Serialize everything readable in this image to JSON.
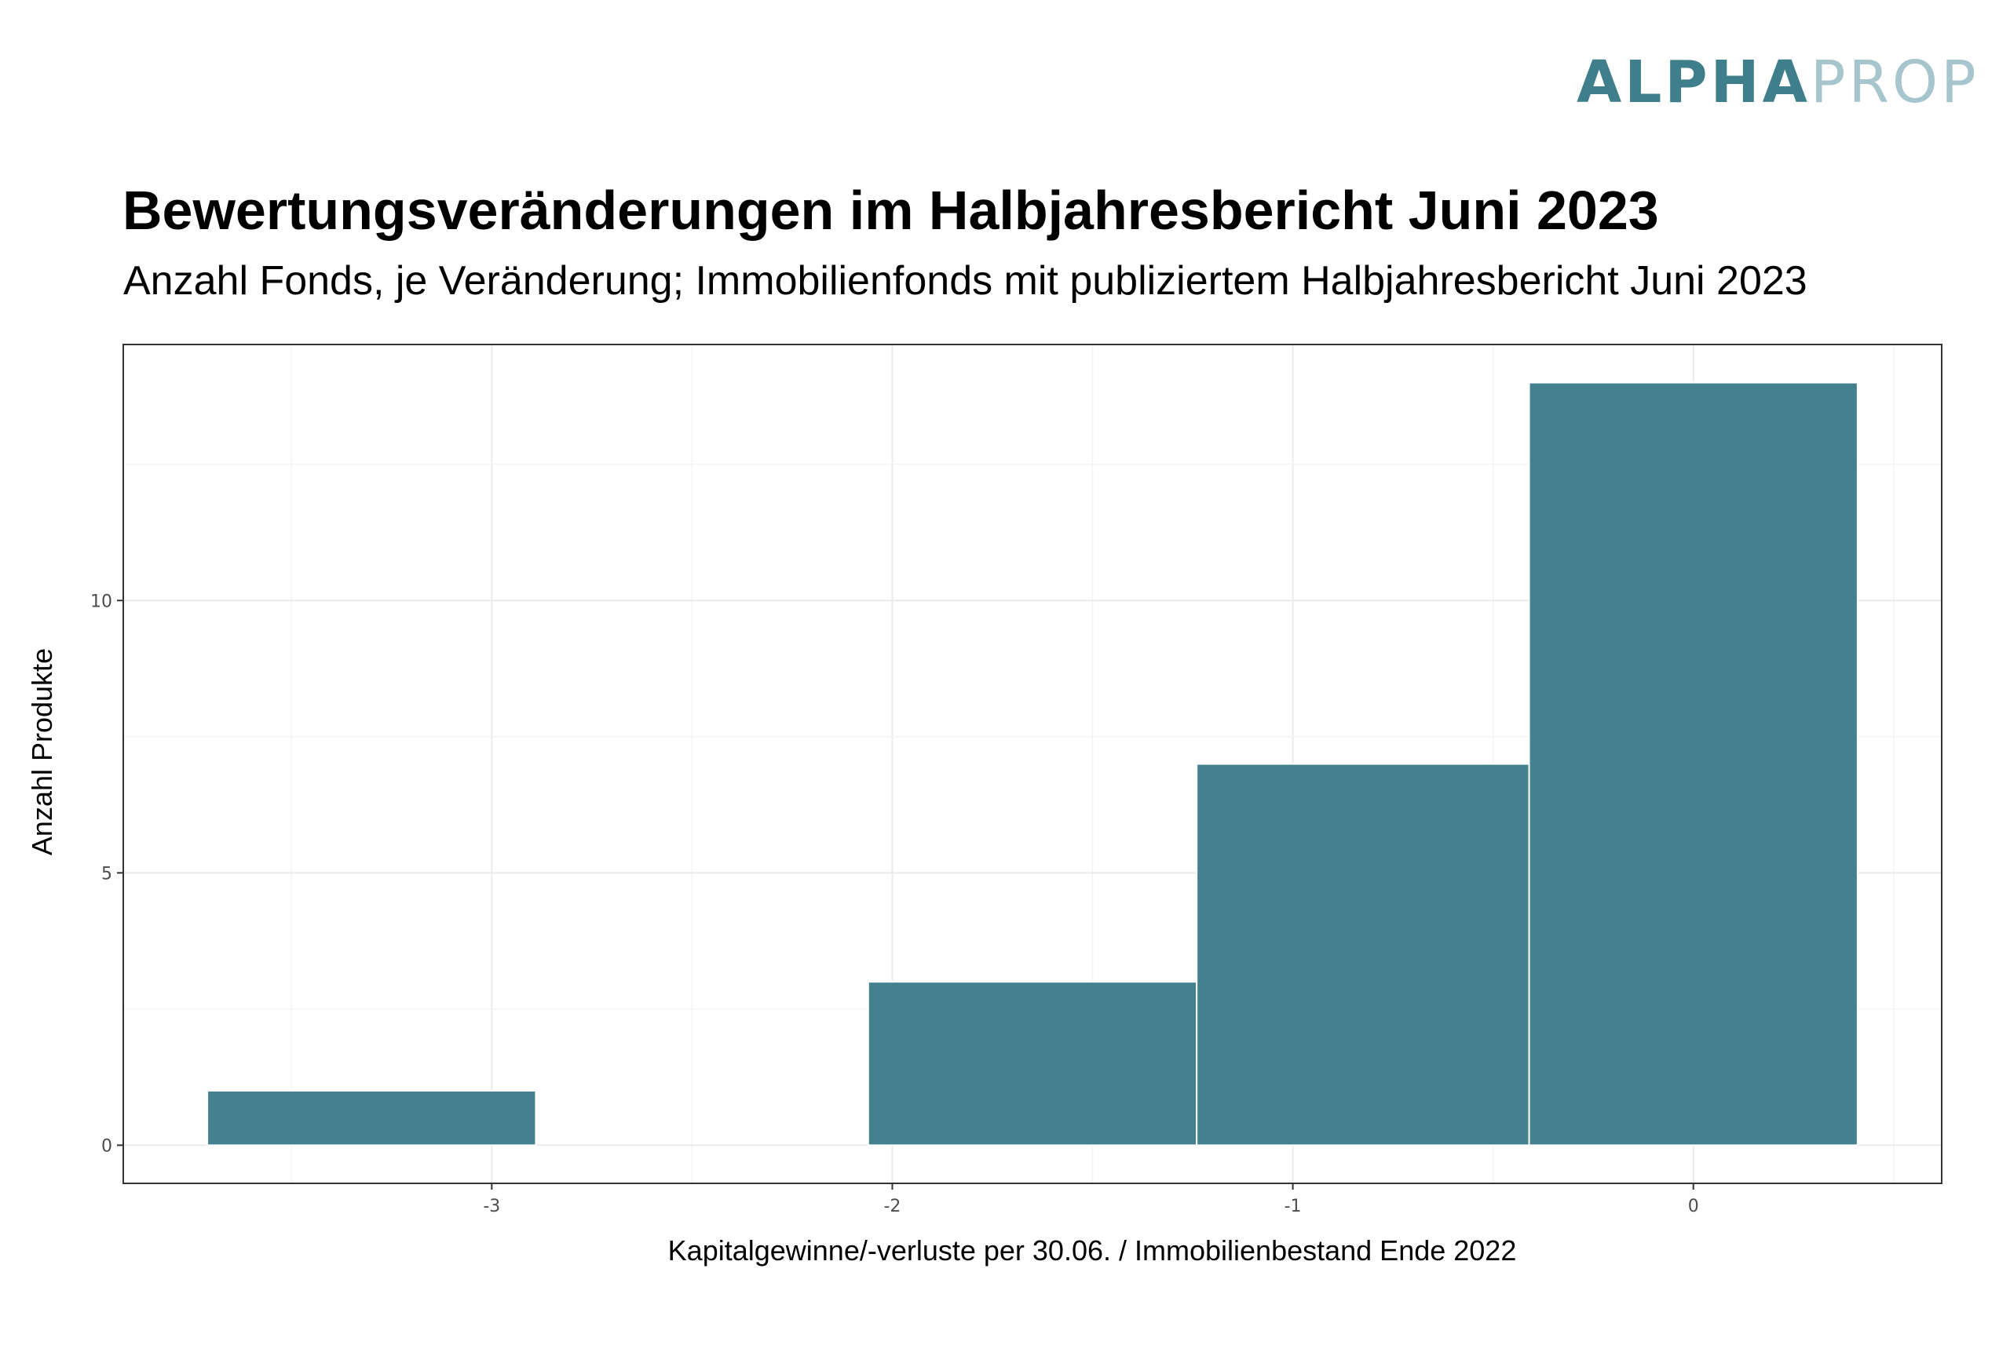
{
  "logo": {
    "part1": "ALPHA",
    "part2": "PROP",
    "color1": "#3f7f8c",
    "color2": "#a6c5cc"
  },
  "chart_data": {
    "type": "bar",
    "subtype": "histogram",
    "title": "Bewertungsveränderungen im Halbjahresbericht Juni 2023",
    "subtitle": "Anzahl Fonds, je Veränderung; Immobilienfonds mit publiziertem Halbjahresbericht Juni 2023",
    "xlabel": "Kapitalgewinne/-verluste per 30.06. / Immobilienbestand Ende 2022",
    "ylabel": "Anzahl Produkte",
    "bins": [
      {
        "xmin": -3.71,
        "xmax": -2.89,
        "count": 1
      },
      {
        "xmin": -2.06,
        "xmax": -1.24,
        "count": 3
      },
      {
        "xmin": -1.24,
        "xmax": -0.41,
        "count": 7
      },
      {
        "xmin": -0.41,
        "xmax": 0.41,
        "count": 14
      }
    ],
    "xlim": [
      -3.92,
      0.62
    ],
    "ylim": [
      -0.7,
      14.7
    ],
    "xticks": [
      "-3",
      "-2",
      "-1",
      "0"
    ],
    "yticks": [
      "0",
      "5",
      "10"
    ],
    "grid": true,
    "bar_color": "#43818f",
    "theme": "bw"
  }
}
